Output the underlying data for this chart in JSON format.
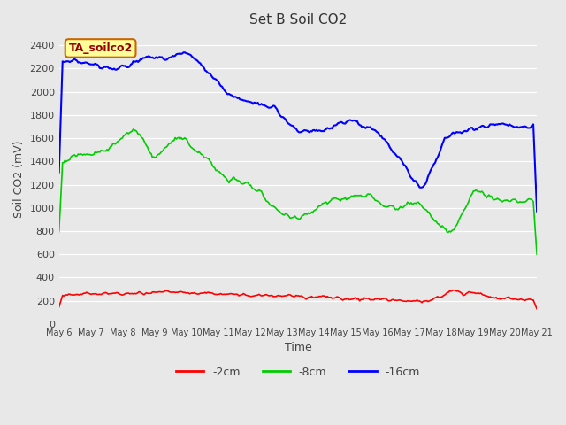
{
  "title": "Set B Soil CO2",
  "xlabel": "Time",
  "ylabel": "Soil CO2 (mV)",
  "annotation": "TA_soilco2",
  "ylim": [
    0,
    2500
  ],
  "yticks": [
    0,
    200,
    400,
    600,
    800,
    1000,
    1200,
    1400,
    1600,
    1800,
    2000,
    2200,
    2400
  ],
  "legend_labels": [
    "-2cm",
    "-8cm",
    "-16cm"
  ],
  "legend_colors": [
    "#ff0000",
    "#00cc00",
    "#0000ff"
  ],
  "line_colors": [
    "#ff0000",
    "#00cc00",
    "#0000ff"
  ],
  "bg_color": "#e8e8e8",
  "plot_bg_color": "#e8e8e8",
  "annotation_bg": "#ffff99",
  "annotation_text_color": "#990000",
  "annotation_border_color": "#cc6600",
  "n_points": 400,
  "x_start": 6,
  "x_end": 21,
  "xtick_labels": [
    "May 6",
    "May 7",
    "May 8",
    "May 9",
    "May 10",
    "May 11",
    "May 12",
    "May 13",
    "May 14",
    "May 15",
    "May 16",
    "May 17",
    "May 18",
    "May 19",
    "May 20",
    "May 21"
  ],
  "xtick_positions": [
    6,
    7,
    8,
    9,
    10,
    11,
    12,
    13,
    14,
    15,
    16,
    17,
    18,
    19,
    20,
    21
  ]
}
